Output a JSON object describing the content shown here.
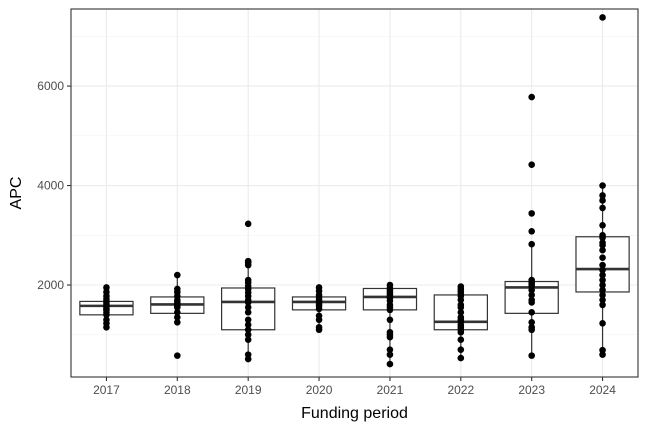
{
  "chart_data": {
    "type": "boxplot",
    "title": "",
    "xlabel": "Funding period",
    "ylabel": "APC",
    "categories": [
      "2017",
      "2018",
      "2019",
      "2020",
      "2021",
      "2022",
      "2023",
      "2024"
    ],
    "ylim": [
      150,
      7550
    ],
    "yticks": [
      2000,
      4000,
      6000
    ],
    "grid": true,
    "legend": "none",
    "boxes": [
      {
        "category": "2017",
        "lower_whisker": 1150,
        "q1": 1400,
        "median": 1580,
        "q3": 1670,
        "upper_whisker": 1950
      },
      {
        "category": "2018",
        "lower_whisker": 1250,
        "q1": 1430,
        "median": 1610,
        "q3": 1760,
        "upper_whisker": 2200
      },
      {
        "category": "2019",
        "lower_whisker": 510,
        "q1": 1100,
        "median": 1660,
        "q3": 1940,
        "upper_whisker": 2480
      },
      {
        "category": "2020",
        "lower_whisker": 1100,
        "q1": 1500,
        "median": 1660,
        "q3": 1760,
        "upper_whisker": 1950
      },
      {
        "category": "2021",
        "lower_whisker": 410,
        "q1": 1500,
        "median": 1760,
        "q3": 1930,
        "upper_whisker": 2000
      },
      {
        "category": "2022",
        "lower_whisker": 530,
        "q1": 1100,
        "median": 1260,
        "q3": 1800,
        "upper_whisker": 1970
      },
      {
        "category": "2023",
        "lower_whisker": 580,
        "q1": 1430,
        "median": 1950,
        "q3": 2070,
        "upper_whisker": 2820
      },
      {
        "category": "2024",
        "lower_whisker": 600,
        "q1": 1860,
        "median": 2320,
        "q3": 2970,
        "upper_whisker": 4000
      }
    ],
    "points": [
      {
        "category": "2017",
        "values": [
          1150,
          1230,
          1300,
          1400,
          1450,
          1500,
          1520,
          1560,
          1600,
          1640,
          1680,
          1720,
          1780,
          1860,
          1950
        ]
      },
      {
        "category": "2018",
        "values": [
          580,
          1250,
          1350,
          1450,
          1550,
          1580,
          1620,
          1660,
          1700,
          1780,
          1860,
          1920,
          2200
        ]
      },
      {
        "category": "2019",
        "values": [
          510,
          600,
          900,
          1000,
          1100,
          1200,
          1300,
          1450,
          1550,
          1650,
          1700,
          1780,
          1850,
          1920,
          1980,
          2050,
          2100,
          2400,
          2450,
          2480,
          3230
        ]
      },
      {
        "category": "2020",
        "values": [
          1100,
          1150,
          1300,
          1380,
          1520,
          1580,
          1620,
          1660,
          1700,
          1750,
          1800,
          1880,
          1950
        ]
      },
      {
        "category": "2021",
        "values": [
          410,
          600,
          700,
          950,
          1000,
          1050,
          1300,
          1500,
          1550,
          1600,
          1680,
          1740,
          1780,
          1820,
          1860,
          1900,
          1940,
          2000
        ]
      },
      {
        "category": "2022",
        "values": [
          530,
          700,
          900,
          1050,
          1100,
          1150,
          1200,
          1260,
          1300,
          1350,
          1450,
          1550,
          1600,
          1700,
          1780,
          1820,
          1870,
          1920,
          1970
        ]
      },
      {
        "category": "2023",
        "values": [
          580,
          1100,
          1150,
          1250,
          1450,
          1650,
          1700,
          1800,
          1900,
          1980,
          2020,
          2060,
          2100,
          2820,
          3080,
          3440,
          4420,
          5780
        ]
      },
      {
        "category": "2024",
        "values": [
          600,
          690,
          1230,
          1600,
          1700,
          1800,
          1900,
          2000,
          2100,
          2200,
          2300,
          2400,
          2550,
          2700,
          2800,
          2850,
          2950,
          3000,
          3200,
          3550,
          3700,
          3800,
          4000,
          7380
        ]
      }
    ]
  }
}
